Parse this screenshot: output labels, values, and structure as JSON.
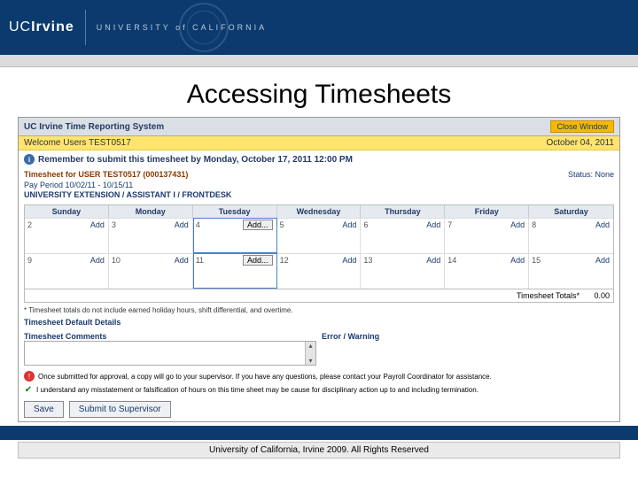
{
  "banner": {
    "logo_left": "UCIrvine",
    "logo_right": "UNIVERSITY of CALIFORNIA"
  },
  "slide_title": "Accessing Timesheets",
  "app_header": {
    "title": "UC Irvine Time Reporting System",
    "close": "Close Window"
  },
  "welcome": {
    "text": "Welcome Users TEST0517",
    "date": "October 04, 2011"
  },
  "reminder": "Remember to submit this timesheet by Monday, October 17, 2011 12:00 PM",
  "ts_header": {
    "line1": "Timesheet for USER TEST0517 (000137431)",
    "line2": "Pay Period 10/02/11 - 10/15/11",
    "line3": "UNIVERSITY EXTENSION / ASSISTANT I / FRONTDESK",
    "status": "Status: None"
  },
  "days": [
    "Sunday",
    "Monday",
    "Tuesday",
    "Wednesday",
    "Thursday",
    "Friday",
    "Saturday"
  ],
  "cells": [
    {
      "n": "2",
      "t": "Add"
    },
    {
      "n": "3",
      "t": "Add"
    },
    {
      "n": "4",
      "t": "Add...",
      "hl": true,
      "btn": true
    },
    {
      "n": "5",
      "t": "Add"
    },
    {
      "n": "6",
      "t": "Add"
    },
    {
      "n": "7",
      "t": "Add"
    },
    {
      "n": "8",
      "t": "Add"
    },
    {
      "n": "9",
      "t": "Add"
    },
    {
      "n": "10",
      "t": "Add"
    },
    {
      "n": "11",
      "t": "Add...",
      "hl": true,
      "btn": true
    },
    {
      "n": "12",
      "t": "Add"
    },
    {
      "n": "13",
      "t": "Add"
    },
    {
      "n": "14",
      "t": "Add"
    },
    {
      "n": "15",
      "t": "Add"
    }
  ],
  "totals": {
    "label": "Timesheet Totals*",
    "value": "0.00"
  },
  "footnote": "* Timesheet totals do not include earned holiday hours, shift differential, and overtime.",
  "sections": {
    "defaults": "Timesheet Default Details",
    "comments": "Timesheet Comments",
    "errors": "Error / Warning"
  },
  "alert": "Once submitted for approval, a copy will go to your supervisor. If you have any questions, please contact your Payroll Coordinator for assistance.",
  "check": "I understand any misstatement or falsification of hours on this time sheet may be cause for disciplinary action up to and including termination.",
  "buttons": {
    "save": "Save",
    "submit": "Submit to Supervisor"
  },
  "rights": "University of California, Irvine 2009. All Rights Reserved"
}
